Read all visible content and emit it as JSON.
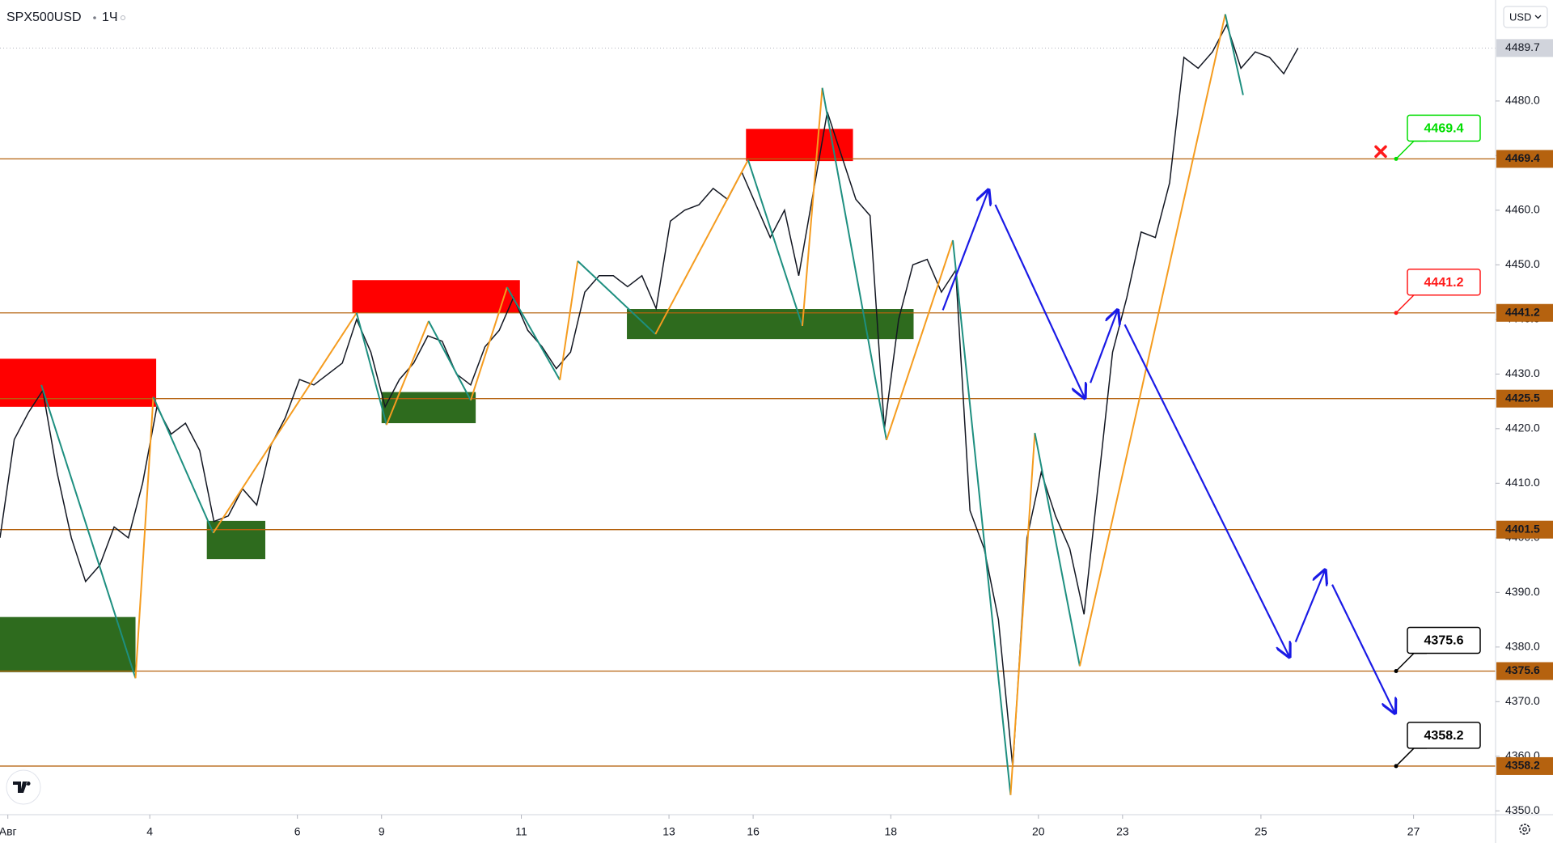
{
  "header": {
    "symbol": "SPX500USD",
    "interval": "1Ч",
    "currency": "USD"
  },
  "chart_data": {
    "type": "line",
    "color": "#131722",
    "x": [
      0,
      0.2,
      0.4,
      0.6,
      0.8,
      1,
      1.2,
      1.4,
      1.6,
      1.8,
      2,
      2.2,
      2.4,
      2.6,
      2.8,
      3,
      3.2,
      3.4,
      3.6,
      3.8,
      4,
      4.2,
      4.4,
      4.6,
      4.8,
      5,
      5.2,
      5.4,
      5.6,
      5.8,
      6,
      6.2,
      6.4,
      6.6,
      6.8,
      7,
      7.2,
      7.4,
      7.6,
      7.8,
      8,
      8.2,
      8.4,
      8.6,
      8.8,
      9,
      9.2,
      9.4,
      9.6,
      9.8,
      10,
      10.2,
      10.4,
      10.6,
      10.8,
      11,
      11.2,
      11.4,
      11.6,
      11.8,
      12,
      12.2,
      12.4,
      12.6,
      12.8,
      13,
      13.2,
      13.4,
      13.6,
      13.8,
      14,
      14.2,
      14.4,
      14.6,
      14.8,
      15,
      15.2,
      15.4,
      15.6,
      15.8,
      16,
      16.2,
      16.4,
      16.6,
      16.8,
      17,
      17.2,
      17.4,
      17.6,
      17.8,
      18,
      18.2
    ],
    "values": [
      4400,
      4418,
      4423,
      4427,
      4412,
      4400,
      4392,
      4395,
      4402,
      4400,
      4410,
      4424,
      4419,
      4421,
      4416,
      4403,
      4404,
      4409,
      4406,
      4417,
      4422,
      4429,
      4428,
      4430,
      4432,
      4440,
      4434,
      4424,
      4429,
      4432,
      4437,
      4436,
      4430,
      4428,
      4435,
      4438,
      4444,
      4438,
      4435,
      4431,
      4434,
      4445,
      4448,
      4448,
      4446,
      4448,
      4442,
      4458,
      4460,
      4461,
      4464,
      4462,
      4467,
      4461,
      4455,
      4460,
      4448,
      4463,
      4478,
      4470,
      4462,
      4459,
      4420,
      4440,
      4450,
      4451,
      4445,
      4449,
      4405,
      4398,
      4385,
      4358,
      4400,
      4412,
      4404,
      4398,
      4386,
      4410,
      4434,
      4444,
      4456,
      4455,
      4465,
      4488,
      4486,
      4489,
      4494,
      4486,
      4489,
      4488,
      4485,
      4489.7
    ],
    "xlim": [
      0,
      20.97
    ],
    "xticks": [
      {
        "value": 0.11,
        "label": "Авг"
      },
      {
        "value": 2.1,
        "label": "4"
      },
      {
        "value": 4.17,
        "label": "6"
      },
      {
        "value": 5.35,
        "label": "9"
      },
      {
        "value": 7.31,
        "label": "11"
      },
      {
        "value": 9.38,
        "label": "13"
      },
      {
        "value": 10.56,
        "label": "16"
      },
      {
        "value": 12.49,
        "label": "18"
      },
      {
        "value": 14.56,
        "label": "20"
      },
      {
        "value": 15.74,
        "label": "23"
      },
      {
        "value": 17.68,
        "label": "25"
      },
      {
        "value": 19.82,
        "label": "27"
      }
    ],
    "ylim": [
      4349.3,
      4498.5
    ],
    "yticks": [
      {
        "value": 4350,
        "label": "4350.0"
      },
      {
        "value": 4360,
        "label": "4360.0"
      },
      {
        "value": 4370,
        "label": "4370.0"
      },
      {
        "value": 4380,
        "label": "4380.0"
      },
      {
        "value": 4390,
        "label": "4390.0"
      },
      {
        "value": 4400,
        "label": "4400.0"
      },
      {
        "value": 4410,
        "label": "4410.0"
      },
      {
        "value": 4420,
        "label": "4420.0"
      },
      {
        "value": 4430,
        "label": "4430.0"
      },
      {
        "value": 4440,
        "label": "4440.0"
      },
      {
        "value": 4450,
        "label": "4450.0"
      },
      {
        "value": 4460,
        "label": "4460.0"
      },
      {
        "value": 4470,
        "label": "4470.0"
      },
      {
        "value": 4480,
        "label": "4480.0"
      }
    ],
    "last_price": 4489.7,
    "level_color": "#b5620f",
    "levels": [
      {
        "value": 4469.4,
        "callout": "#00dd00",
        "marker": "cross"
      },
      {
        "value": 4441.2,
        "callout": "#ff1a1a"
      },
      {
        "value": 4425.5
      },
      {
        "value": 4401.5
      },
      {
        "value": 4375.6,
        "callout": "#000000"
      },
      {
        "value": 4358.2,
        "callout": "#000000"
      }
    ],
    "zones": [
      {
        "color": "#ff0000",
        "x": [
          0,
          2.19
        ],
        "y": [
          4424.0,
          4432.8
        ]
      },
      {
        "color": "#2e6b1e",
        "x": [
          0,
          1.9
        ],
        "y": [
          4375.4,
          4385.5
        ]
      },
      {
        "color": "#2e6b1e",
        "x": [
          2.9,
          3.72
        ],
        "y": [
          4396.1,
          4403.1
        ]
      },
      {
        "color": "#ff0000",
        "x": [
          4.94,
          7.29
        ],
        "y": [
          4441.2,
          4447.2
        ]
      },
      {
        "color": "#2e6b1e",
        "x": [
          5.35,
          6.67
        ],
        "y": [
          4421.0,
          4426.7
        ]
      },
      {
        "color": "#2e6b1e",
        "x": [
          8.79,
          12.81
        ],
        "y": [
          4436.4,
          4441.9
        ]
      },
      {
        "color": "#ff0000",
        "x": [
          10.46,
          11.96
        ],
        "y": [
          4469.0,
          4474.9
        ]
      }
    ],
    "zigzag": {
      "up_color": "#f59c1f",
      "down_color": "#1e8f80",
      "x": [
        0.58,
        1.9,
        2.15,
        2.99,
        5.0,
        5.42,
        6.01,
        6.6,
        7.11,
        7.85,
        8.1,
        9.19,
        10.49,
        11.25,
        11.53,
        12.43,
        13.36,
        14.17,
        14.51,
        15.14,
        17.18,
        17.43
      ],
      "values": [
        4428.0,
        4374.3,
        4425.8,
        4400.9,
        4441.2,
        4420.7,
        4439.7,
        4425.2,
        4445.9,
        4428.9,
        4450.7,
        4437.3,
        4469.2,
        4438.8,
        4482.4,
        4417.9,
        4454.5,
        4352.9,
        4419.2,
        4376.5,
        4495.9,
        4481.1
      ]
    },
    "projection": {
      "color": "#1a1ae6",
      "x": [
        13.22,
        13.86,
        15.21,
        15.67,
        18.08,
        18.58,
        19.56
      ],
      "values": [
        4441.7,
        4463.7,
        4425.6,
        4441.7,
        4378.2,
        4394.1,
        4367.9
      ]
    }
  }
}
